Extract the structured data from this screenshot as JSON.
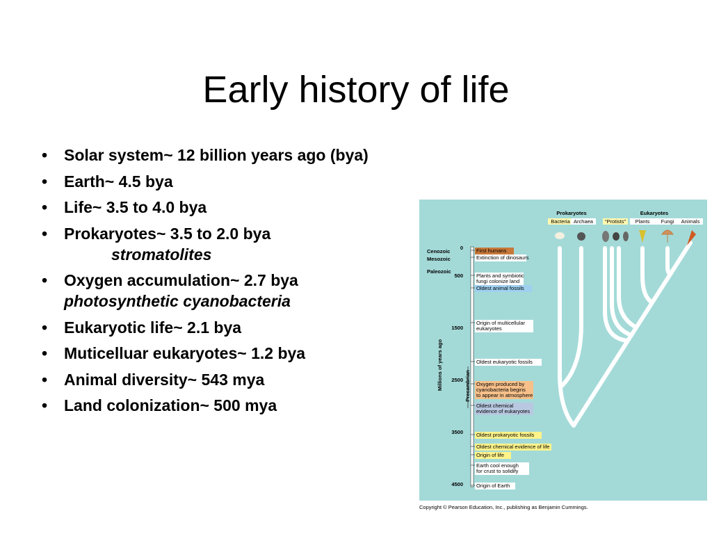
{
  "title": "Early history of life",
  "bullets": [
    {
      "text": "Solar system~ 12 billion years ago (bya)"
    },
    {
      "text": "Earth~ 4.5 bya"
    },
    {
      "text": "Life~ 3.5 to 4.0 bya"
    },
    {
      "text": "Prokaryotes~ 3.5 to 2.0 bya",
      "sub": "stromatolites"
    },
    {
      "text": "Oxygen accumulation~ 2.7 bya",
      "sub": "photosynthetic cyanobacteria"
    },
    {
      "text": "Eukaryotic life~ 2.1 bya"
    },
    {
      "text": "Muticelluar eukaryotes~ 1.2 bya"
    },
    {
      "text": "Animal diversity~ 543 mya"
    },
    {
      "text": "Land colonization~ 500 mya"
    }
  ],
  "figure": {
    "groups": [
      "Prokaryotes",
      "Eukaryotes"
    ],
    "subgroups": [
      "Bacteria",
      "Archaea",
      "“Protists”",
      "Plants",
      "Fungi",
      "Animals"
    ],
    "eras": [
      "Cenozoic",
      "Mesozoic",
      "Paleozoic"
    ],
    "axis_label": "Millions of years ago",
    "eon_label": "Precambrian",
    "ticks": [
      0,
      500,
      1500,
      2500,
      3500,
      4500
    ],
    "events": [
      {
        "lines": [
          "First humans"
        ]
      },
      {
        "lines": [
          "Extinction of dinosaurs"
        ]
      },
      {
        "lines": [
          "Plants and symbiotic",
          "fungi colonize land"
        ]
      },
      {
        "lines": [
          "Oldest animal fossils"
        ]
      },
      {
        "lines": [
          "Origin of multicellular",
          "eukaryotes"
        ]
      },
      {
        "lines": [
          "Oldest eukaryotic fossils"
        ]
      },
      {
        "lines": [
          "Oxygen produced by",
          "cyanobacteria begins",
          "to appear in atmosphere"
        ]
      },
      {
        "lines": [
          "Oldest chemical",
          "evidence of eukaryotes"
        ]
      },
      {
        "lines": [
          "Oldest prokaryotic fossils"
        ]
      },
      {
        "lines": [
          "Oldest chemical evidence of life"
        ]
      },
      {
        "lines": [
          "Origin of life"
        ]
      },
      {
        "lines": [
          "Earth cool enough",
          "for crust to solidify"
        ]
      },
      {
        "lines": [
          "Origin of Earth"
        ]
      }
    ],
    "copyright": "Copyright © Pearson Education, Inc., publishing as Benjamin Cummings."
  }
}
